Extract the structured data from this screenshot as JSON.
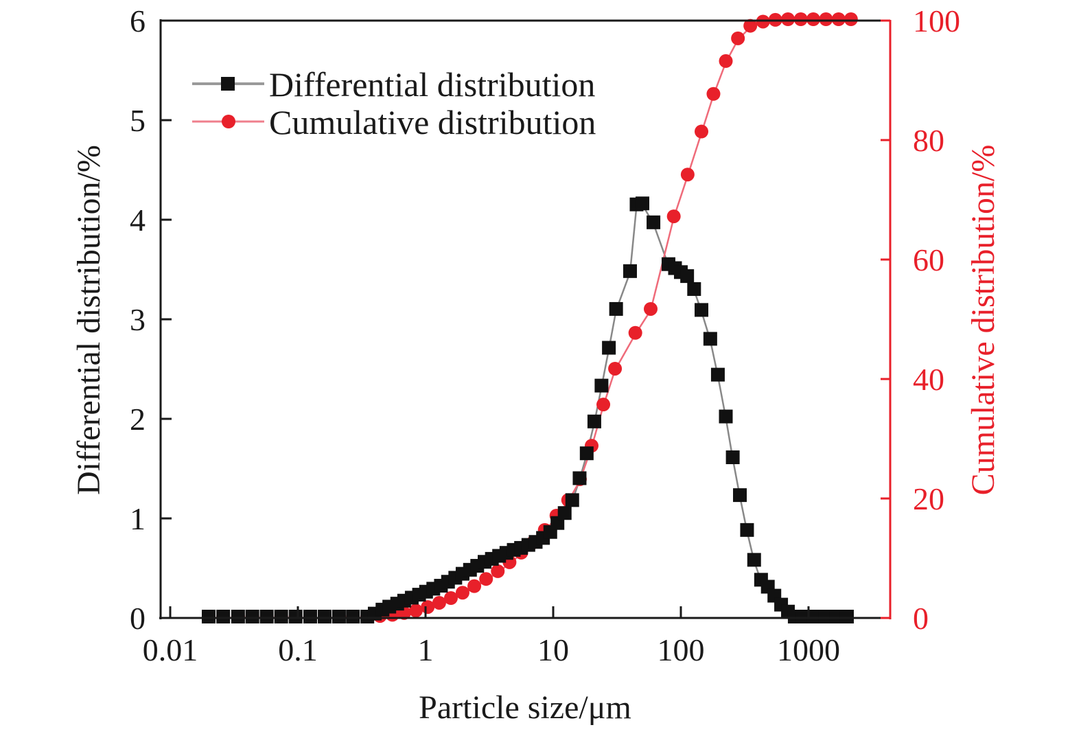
{
  "chart_data": {
    "type": "line",
    "title": "",
    "xlabel": "Particle size/μm",
    "ylabel": "Differential distribution/%",
    "y2label": "Cumulative distribution/%",
    "xscale": "log",
    "xlim": [
      0.01,
      4000
    ],
    "ylim": [
      0,
      6
    ],
    "y2lim": [
      0,
      100
    ],
    "xticks": [
      {
        "value": 0.01,
        "label": "0.01"
      },
      {
        "value": 0.1,
        "label": "0.1"
      },
      {
        "value": 1,
        "label": "1"
      },
      {
        "value": 10,
        "label": "10"
      },
      {
        "value": 100,
        "label": "100"
      },
      {
        "value": 1000,
        "label": "1000"
      }
    ],
    "yticks": [
      {
        "value": 0,
        "label": "0"
      },
      {
        "value": 1,
        "label": "1"
      },
      {
        "value": 2,
        "label": "2"
      },
      {
        "value": 3,
        "label": "3"
      },
      {
        "value": 4,
        "label": "4"
      },
      {
        "value": 5,
        "label": "5"
      },
      {
        "value": 6,
        "label": "6"
      }
    ],
    "y2ticks": [
      {
        "value": 0,
        "label": "0"
      },
      {
        "value": 20,
        "label": "20"
      },
      {
        "value": 40,
        "label": "40"
      },
      {
        "value": 60,
        "label": "60"
      },
      {
        "value": 80,
        "label": "80"
      },
      {
        "value": 100,
        "label": "100"
      }
    ],
    "grid": false,
    "legend_position": "top-left",
    "colors": {
      "differential": "#111111",
      "differential_line": "#888888",
      "cumulative": "#e8202a",
      "cumulative_line": "#ef6b7a",
      "right_axis": "#e8202a",
      "left_axis": "#1a1a1a"
    },
    "series": [
      {
        "name": "Differential distribution",
        "axis": "left",
        "marker": "square",
        "x": [
          0.02,
          0.026,
          0.034,
          0.044,
          0.057,
          0.074,
          0.096,
          0.125,
          0.162,
          0.21,
          0.27,
          0.35,
          0.4,
          0.46,
          0.52,
          0.6,
          0.68,
          0.78,
          0.89,
          1.01,
          1.15,
          1.32,
          1.5,
          1.71,
          1.95,
          2.23,
          2.54,
          2.9,
          3.31,
          3.77,
          4.3,
          4.91,
          5.6,
          6.39,
          7.29,
          8.32,
          9.49,
          10.8,
          12.3,
          14.1,
          16.1,
          18.3,
          21.0,
          23.9,
          27.3,
          31.1,
          40.0,
          45.0,
          50.0,
          61.0,
          80.0,
          90.0,
          100.0,
          112.0,
          127.0,
          145.0,
          170.0,
          195.0,
          225.0,
          255.0,
          290.0,
          330.0,
          375.0,
          425.0,
          480.0,
          540.0,
          610.0,
          690.0,
          780.0,
          900.0,
          1100.0,
          1350.0,
          1650.0,
          2000.0
        ],
        "y": [
          0,
          0,
          0,
          0,
          0,
          0,
          0,
          0,
          0,
          0,
          0,
          0,
          0.03,
          0.07,
          0.1,
          0.13,
          0.16,
          0.19,
          0.22,
          0.25,
          0.28,
          0.31,
          0.35,
          0.39,
          0.43,
          0.47,
          0.51,
          0.55,
          0.58,
          0.61,
          0.64,
          0.67,
          0.69,
          0.72,
          0.75,
          0.79,
          0.85,
          0.94,
          1.04,
          1.17,
          1.39,
          1.64,
          1.96,
          2.32,
          2.7,
          3.09,
          3.47,
          4.14,
          4.15,
          3.96,
          3.54,
          3.5,
          3.46,
          3.42,
          3.29,
          3.08,
          2.79,
          2.43,
          2.01,
          1.6,
          1.22,
          0.87,
          0.57,
          0.37,
          0.3,
          0.21,
          0.12,
          0.05,
          0,
          0,
          0,
          0,
          0,
          0
        ]
      },
      {
        "name": "Cumulative distribution",
        "axis": "right",
        "marker": "circle",
        "x": [
          0.02,
          0.026,
          0.034,
          0.044,
          0.057,
          0.074,
          0.096,
          0.125,
          0.162,
          0.21,
          0.27,
          0.35,
          0.44,
          0.55,
          0.68,
          0.84,
          1.04,
          1.28,
          1.58,
          1.95,
          2.41,
          2.98,
          3.68,
          4.55,
          5.62,
          6.95,
          8.59,
          10.6,
          13.1,
          16.2,
          20.0,
          24.7,
          30.5,
          44.0,
          58.0,
          88.0,
          113.0,
          145.0,
          180.0,
          225.0,
          280.0,
          350.0,
          440.0,
          550.0,
          690.0,
          870.0,
          1090.0,
          1370.0,
          1720.0,
          2150.0
        ],
        "y": [
          0,
          0,
          0,
          0,
          0,
          0,
          0,
          0,
          0,
          0,
          0,
          0,
          0.1,
          0.3,
          0.6,
          1.0,
          1.6,
          2.3,
          3.1,
          4.0,
          5.1,
          6.3,
          7.6,
          9.1,
          10.7,
          12.4,
          14.5,
          16.9,
          19.5,
          23.0,
          28.6,
          35.5,
          41.5,
          47.5,
          51.5,
          67.0,
          74.0,
          81.2,
          87.5,
          93.0,
          96.8,
          98.9,
          99.6,
          99.9,
          100,
          100,
          100,
          100,
          100,
          100
        ]
      }
    ]
  }
}
